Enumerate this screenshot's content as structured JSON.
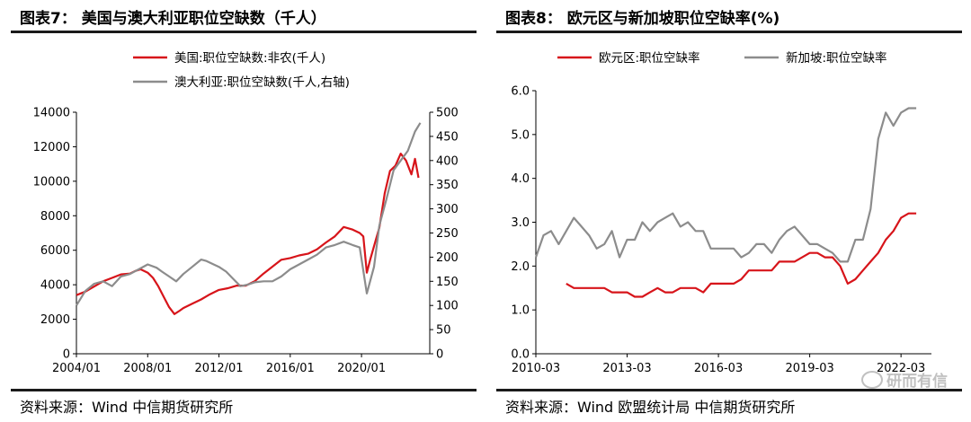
{
  "panels": {
    "left": {
      "title": "图表7： 美国与澳大利亚职位空缺数（千人）",
      "source": "资料来源：Wind 中信期货研究所"
    },
    "right": {
      "title": "图表8： 欧元区与新加坡职位空缺率(%)",
      "source": "资料来源：Wind 欧盟统计局 中信期货研究所"
    }
  },
  "watermark": "研而有信",
  "colors": {
    "red": "#d7141a",
    "gray": "#8c8c8c"
  },
  "chart_data": [
    {
      "type": "line",
      "title": "美国与澳大利亚职位空缺数（千人）",
      "xlabel": "",
      "ylabel": "",
      "y2label": "",
      "x_range": [
        2004.0,
        2023.83
      ],
      "x_ticks": [
        2004.0,
        2008.0,
        2012.0,
        2016.0,
        2020.0
      ],
      "x_tick_labels": [
        "2004/01",
        "2008/01",
        "2012/01",
        "2016/01",
        "2020/01"
      ],
      "ylim": [
        0,
        14000
      ],
      "y_ticks": [
        0,
        2000,
        4000,
        6000,
        8000,
        10000,
        12000,
        14000
      ],
      "y2lim": [
        0,
        500
      ],
      "y2_ticks": [
        0,
        50,
        100,
        150,
        200,
        250,
        300,
        350,
        400,
        450,
        500
      ],
      "legend": "top-center",
      "series": [
        {
          "name": "美国:职位空缺数:非农(千人)",
          "axis": "left",
          "color": "#d7141a",
          "x": [
            2004.0,
            2004.5,
            2005.0,
            2005.5,
            2006.0,
            2006.5,
            2007.0,
            2007.3,
            2007.6,
            2008.0,
            2008.3,
            2008.6,
            2008.9,
            2009.2,
            2009.5,
            2009.8,
            2010.0,
            2010.5,
            2011.0,
            2011.5,
            2012.0,
            2012.5,
            2013.0,
            2013.5,
            2014.0,
            2014.5,
            2015.0,
            2015.5,
            2016.0,
            2016.5,
            2017.0,
            2017.5,
            2018.0,
            2018.5,
            2019.0,
            2019.5,
            2019.9,
            2020.1,
            2020.3,
            2020.5,
            2020.8,
            2021.0,
            2021.3,
            2021.6,
            2021.9,
            2022.2,
            2022.5,
            2022.8,
            2023.0,
            2023.2
          ],
          "y": [
            3400,
            3600,
            3900,
            4200,
            4400,
            4600,
            4650,
            4800,
            4900,
            4700,
            4400,
            3900,
            3300,
            2700,
            2300,
            2500,
            2650,
            2900,
            3150,
            3450,
            3700,
            3800,
            3950,
            3950,
            4200,
            4650,
            5050,
            5450,
            5550,
            5700,
            5800,
            6050,
            6450,
            6800,
            7350,
            7200,
            7000,
            6800,
            4700,
            5500,
            6600,
            7300,
            9300,
            10600,
            10900,
            11600,
            11200,
            10400,
            11300,
            10200
          ]
        },
        {
          "name": "澳大利亚:职位空缺数(千人,右轴)",
          "axis": "right",
          "color": "#8c8c8c",
          "x": [
            2004.0,
            2004.5,
            2005.0,
            2005.5,
            2006.0,
            2006.5,
            2007.0,
            2007.5,
            2008.0,
            2008.5,
            2008.8,
            2009.2,
            2009.6,
            2010.0,
            2010.5,
            2011.0,
            2011.3,
            2011.7,
            2012.0,
            2012.4,
            2012.8,
            2013.2,
            2013.6,
            2014.0,
            2014.5,
            2015.0,
            2015.5,
            2016.0,
            2016.5,
            2017.0,
            2017.5,
            2018.0,
            2018.5,
            2019.0,
            2019.5,
            2019.9,
            2020.3,
            2020.7,
            2021.0,
            2021.4,
            2021.8,
            2022.2,
            2022.6,
            2023.0,
            2023.3
          ],
          "y": [
            100,
            130,
            145,
            150,
            140,
            160,
            165,
            175,
            185,
            178,
            170,
            160,
            150,
            165,
            180,
            195,
            192,
            185,
            180,
            170,
            155,
            140,
            143,
            148,
            150,
            150,
            160,
            175,
            185,
            195,
            205,
            220,
            225,
            232,
            225,
            220,
            125,
            180,
            265,
            320,
            380,
            400,
            420,
            460,
            478
          ]
        }
      ]
    },
    {
      "type": "line",
      "title": "欧元区与新加坡职位空缺率(%)",
      "xlabel": "",
      "ylabel": "",
      "x_range": [
        2010.25,
        2023.25
      ],
      "x_ticks": [
        2010.25,
        2013.25,
        2016.25,
        2019.25,
        2022.25
      ],
      "x_tick_labels": [
        "2010-03",
        "2013-03",
        "2016-03",
        "2019-03",
        "2022-03"
      ],
      "ylim": [
        0,
        6
      ],
      "y_ticks": [
        0,
        1,
        2,
        3,
        4,
        5,
        6
      ],
      "y_tick_labels": [
        "0.0",
        "1.0",
        "2.0",
        "3.0",
        "4.0",
        "5.0",
        "6.0"
      ],
      "legend": "top-center",
      "series": [
        {
          "name": "欧元区:职位空缺率",
          "color": "#d7141a",
          "x": [
            2011.25,
            2011.5,
            2011.75,
            2012.0,
            2012.25,
            2012.5,
            2012.75,
            2013.0,
            2013.25,
            2013.5,
            2013.75,
            2014.0,
            2014.25,
            2014.5,
            2014.75,
            2015.0,
            2015.25,
            2015.5,
            2015.75,
            2016.0,
            2016.25,
            2016.5,
            2016.75,
            2017.0,
            2017.25,
            2017.5,
            2017.75,
            2018.0,
            2018.25,
            2018.5,
            2018.75,
            2019.0,
            2019.25,
            2019.5,
            2019.75,
            2020.0,
            2020.25,
            2020.5,
            2020.75,
            2021.0,
            2021.25,
            2021.5,
            2021.75,
            2022.0,
            2022.25,
            2022.5,
            2022.75
          ],
          "y": [
            1.6,
            1.5,
            1.5,
            1.5,
            1.5,
            1.5,
            1.4,
            1.4,
            1.4,
            1.3,
            1.3,
            1.4,
            1.5,
            1.4,
            1.4,
            1.5,
            1.5,
            1.5,
            1.4,
            1.6,
            1.6,
            1.6,
            1.6,
            1.7,
            1.9,
            1.9,
            1.9,
            1.9,
            2.1,
            2.1,
            2.1,
            2.2,
            2.3,
            2.3,
            2.2,
            2.2,
            2.0,
            1.6,
            1.7,
            1.9,
            2.1,
            2.3,
            2.6,
            2.8,
            3.1,
            3.2,
            3.2
          ]
        },
        {
          "name": "新加坡:职位空缺率",
          "color": "#8c8c8c",
          "x": [
            2010.25,
            2010.5,
            2010.75,
            2011.0,
            2011.25,
            2011.5,
            2011.75,
            2012.0,
            2012.25,
            2012.5,
            2012.75,
            2013.0,
            2013.25,
            2013.5,
            2013.75,
            2014.0,
            2014.25,
            2014.5,
            2014.75,
            2015.0,
            2015.25,
            2015.5,
            2015.75,
            2016.0,
            2016.25,
            2016.5,
            2016.75,
            2017.0,
            2017.25,
            2017.5,
            2017.75,
            2018.0,
            2018.25,
            2018.5,
            2018.75,
            2019.0,
            2019.25,
            2019.5,
            2019.75,
            2020.0,
            2020.25,
            2020.5,
            2020.75,
            2021.0,
            2021.25,
            2021.5,
            2021.75,
            2022.0,
            2022.25,
            2022.5,
            2022.75
          ],
          "y": [
            2.2,
            2.7,
            2.8,
            2.5,
            2.8,
            3.1,
            2.9,
            2.7,
            2.4,
            2.5,
            2.8,
            2.2,
            2.6,
            2.6,
            3.0,
            2.8,
            3.0,
            3.1,
            3.2,
            2.9,
            3.0,
            2.8,
            2.8,
            2.4,
            2.4,
            2.4,
            2.4,
            2.2,
            2.3,
            2.5,
            2.5,
            2.3,
            2.6,
            2.8,
            2.9,
            2.7,
            2.5,
            2.5,
            2.4,
            2.3,
            2.1,
            2.1,
            2.6,
            2.6,
            3.3,
            4.9,
            5.5,
            5.2,
            5.5,
            5.6,
            5.6
          ]
        }
      ]
    }
  ]
}
